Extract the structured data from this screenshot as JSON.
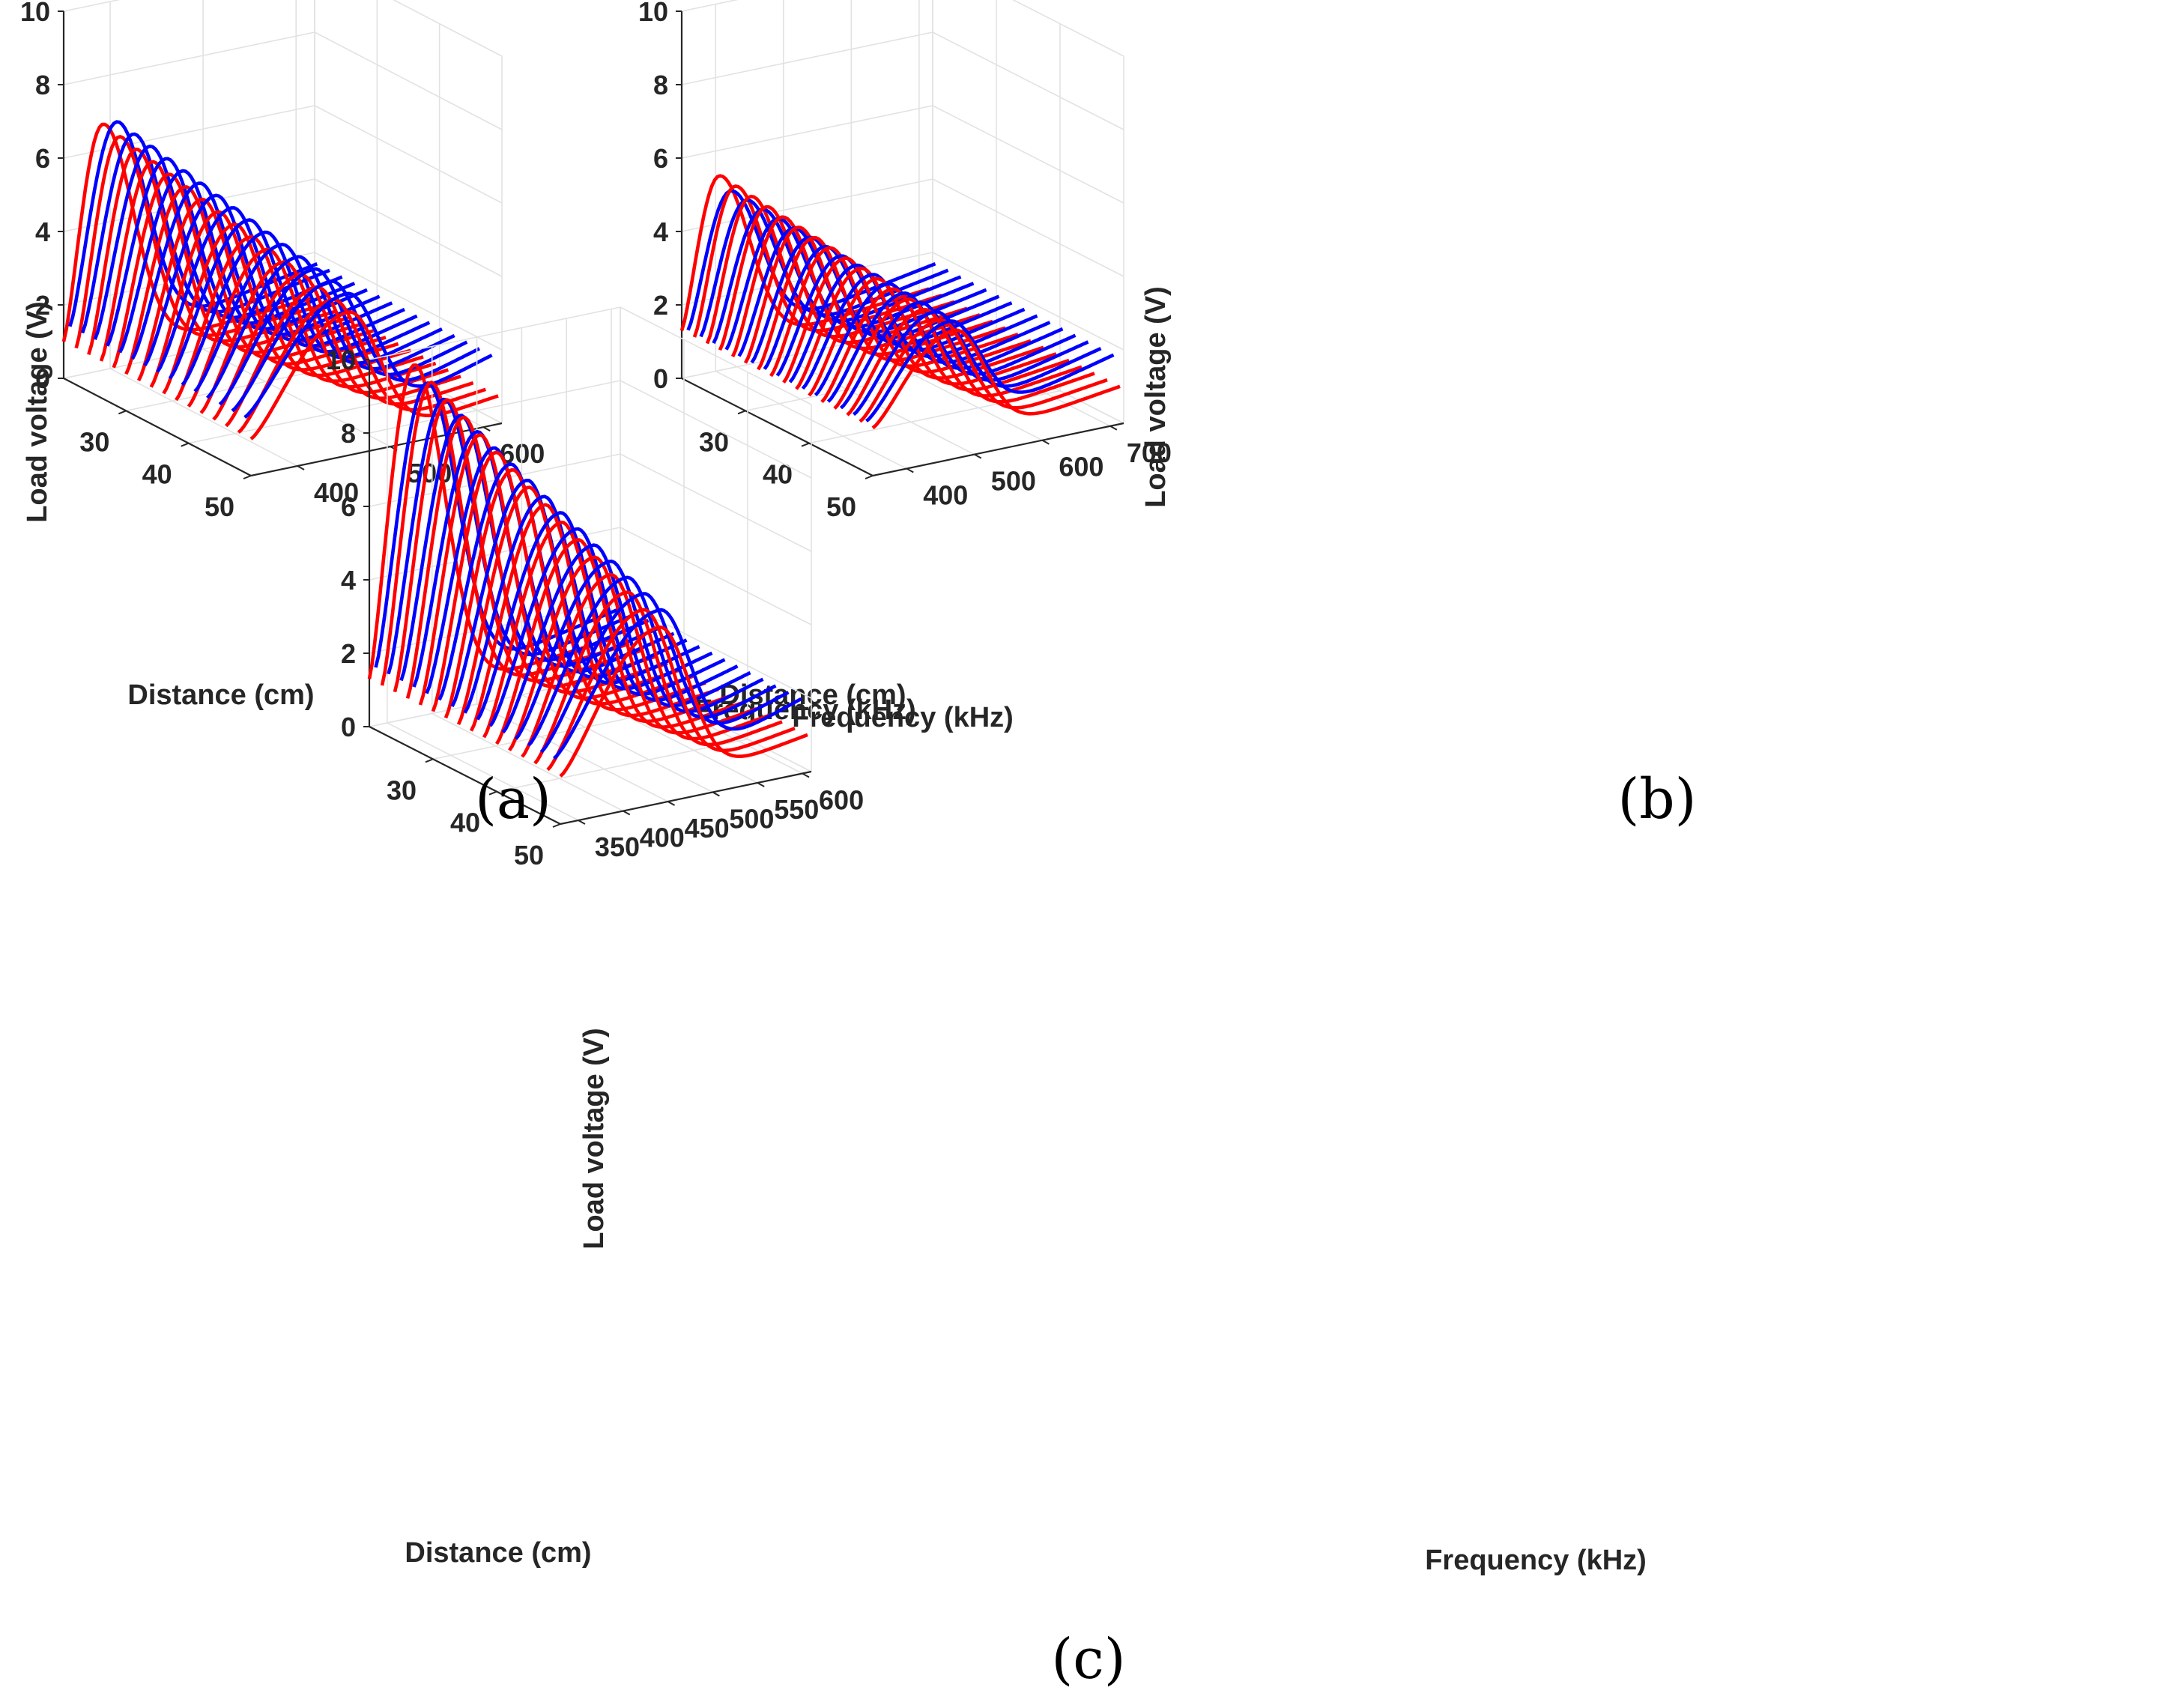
{
  "figure": {
    "colors": {
      "series_a": "#ff0000",
      "series_b": "#0000ff",
      "grid": "#e2e2e2",
      "axis": "#262626"
    }
  },
  "chart_data": [
    {
      "panel": "(a)",
      "type": "line",
      "subtype": "3d-waterfall",
      "title": "",
      "xlabel": "Distance (cm)",
      "ylabel": "Frequency (kHz)",
      "zlabel": "Load voltage (V)",
      "xlim": [
        20,
        50
      ],
      "ylim": [
        350,
        620
      ],
      "zlim": [
        0,
        10
      ],
      "xticks": [
        30,
        40,
        50
      ],
      "yticks": [
        400,
        500,
        600
      ],
      "zticks": [
        0,
        2,
        4,
        6,
        8,
        10
      ],
      "grid": true,
      "series": [
        {
          "name": "red",
          "color": "#ff0000",
          "distances": [
            20,
            22,
            24,
            26,
            28,
            30,
            32,
            34,
            36,
            38,
            40,
            42,
            44,
            46,
            48,
            50
          ],
          "curve_model": {
            "baseline_start_V": 1.0,
            "peak_V_near": 6.7,
            "peak_V_far": 3.9,
            "peak_freq_kHz_near": 392,
            "peak_freq_kHz_far": 455,
            "high_freq_tail_V": 0.6
          }
        },
        {
          "name": "blue",
          "color": "#0000ff",
          "distances": [
            21,
            23,
            25,
            27,
            29,
            31,
            33,
            35,
            37,
            39,
            41,
            43,
            45,
            47,
            49
          ],
          "curve_model": {
            "baseline_start_V": 1.5,
            "peak_V_near": 6.9,
            "peak_V_far": 4.2,
            "peak_freq_kHz_near": 398,
            "peak_freq_kHz_far": 462,
            "high_freq_tail_V": 1.4
          }
        }
      ]
    },
    {
      "panel": "(b)",
      "type": "line",
      "subtype": "3d-waterfall",
      "title": "",
      "xlabel": "Distance (cm)",
      "ylabel": "Frequency (kHz)",
      "zlabel": "Load voltage (V)",
      "xlim": [
        20,
        50
      ],
      "ylim": [
        350,
        720
      ],
      "zlim": [
        0,
        10
      ],
      "xticks": [
        30,
        40,
        50
      ],
      "yticks": [
        400,
        500,
        600,
        700
      ],
      "zticks": [
        0,
        2,
        4,
        6,
        8,
        10
      ],
      "grid": true,
      "series": [
        {
          "name": "red",
          "color": "#ff0000",
          "distances": [
            20,
            22,
            24,
            26,
            28,
            30,
            32,
            34,
            36,
            38,
            40,
            42,
            44,
            46,
            48,
            50
          ],
          "curve_model": {
            "baseline_start_V": 1.3,
            "peak_V_near": 5.3,
            "peak_V_far": 3.5,
            "peak_freq_kHz_near": 405,
            "peak_freq_kHz_far": 470,
            "high_freq_tail_V": 0.8
          }
        },
        {
          "name": "blue",
          "color": "#0000ff",
          "distances": [
            21,
            23,
            25,
            27,
            29,
            31,
            33,
            35,
            37,
            39,
            41,
            43,
            45,
            47,
            49
          ],
          "curve_model": {
            "baseline_start_V": 1.4,
            "peak_V_near": 5.0,
            "peak_V_far": 3.6,
            "peak_freq_kHz_near": 410,
            "peak_freq_kHz_far": 475,
            "high_freq_tail_V": 1.4
          }
        }
      ]
    },
    {
      "panel": "(c)",
      "type": "line",
      "subtype": "3d-waterfall",
      "title": "",
      "xlabel": "Distance (cm)",
      "ylabel": "Frequency (kHz)",
      "zlabel": "Load voltage (V)",
      "xlim": [
        20,
        50
      ],
      "ylim": [
        330,
        610
      ],
      "zlim": [
        0,
        10
      ],
      "xticks": [
        30,
        40,
        50
      ],
      "yticks": [
        350,
        400,
        450,
        500,
        550,
        600
      ],
      "zticks": [
        0,
        2,
        4,
        6,
        8,
        10
      ],
      "grid": true,
      "series": [
        {
          "name": "red",
          "color": "#ff0000",
          "distances": [
            20,
            22,
            24,
            26,
            28,
            30,
            32,
            34,
            36,
            38,
            40,
            42,
            44,
            46,
            48,
            50
          ],
          "curve_model": {
            "baseline_start_V": 1.3,
            "peak_V_near": 9.6,
            "peak_V_far": 4.8,
            "peak_freq_kHz_near": 380,
            "peak_freq_kHz_far": 440,
            "high_freq_tail_V": 0.8
          }
        },
        {
          "name": "blue",
          "color": "#0000ff",
          "distances": [
            21,
            23,
            25,
            27,
            29,
            31,
            33,
            35,
            37,
            39,
            41,
            43,
            45,
            47,
            49
          ],
          "curve_model": {
            "baseline_start_V": 1.7,
            "peak_V_near": 9.3,
            "peak_V_far": 5.0,
            "peak_freq_kHz_near": 385,
            "peak_freq_kHz_far": 450,
            "high_freq_tail_V": 1.5
          }
        }
      ]
    }
  ]
}
